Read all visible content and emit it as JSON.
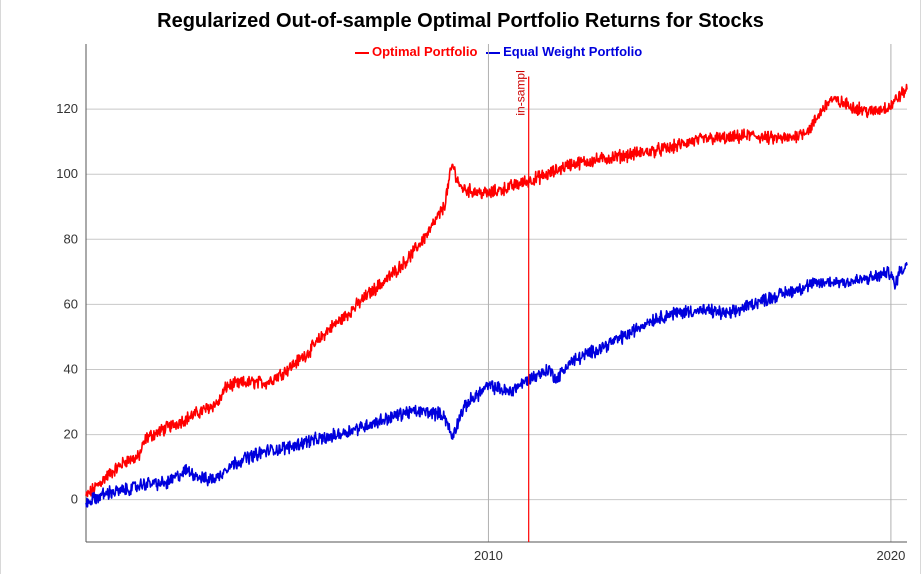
{
  "chart_data": {
    "type": "line",
    "title": "Regularized Out-of-sample Optimal Portfolio Returns for Stocks",
    "xlabel": "",
    "ylabel": "",
    "xlim": [
      2000.0,
      2020.4
    ],
    "ylim": [
      -13,
      140
    ],
    "y_ticks": [
      0,
      20,
      40,
      60,
      80,
      100,
      120
    ],
    "x_ticks": [
      2010,
      2020
    ],
    "grid": true,
    "legend_position": "top-center",
    "annotation": {
      "text": "in-sampl",
      "x": 2011.0,
      "color": "#ff0000"
    },
    "series": [
      {
        "name": "Optimal Portfolio",
        "color": "#ff0000",
        "x": [
          2000.0,
          2000.5,
          2001.0,
          2001.3,
          2001.5,
          2002.0,
          2002.5,
          2003.0,
          2003.3,
          2003.5,
          2004.0,
          2004.5,
          2005.0,
          2005.5,
          2006.0,
          2006.5,
          2007.0,
          2007.5,
          2008.0,
          2008.5,
          2008.9,
          2009.1,
          2009.3,
          2009.5,
          2010.0,
          2010.5,
          2011.0,
          2011.5,
          2012.0,
          2012.5,
          2013.0,
          2013.5,
          2014.0,
          2014.5,
          2015.0,
          2015.5,
          2016.0,
          2016.5,
          2017.0,
          2017.5,
          2018.0,
          2018.3,
          2018.5,
          2019.0,
          2019.5,
          2020.0,
          2020.2,
          2020.4
        ],
        "y": [
          1,
          7,
          12,
          13,
          19,
          22,
          25,
          28,
          30,
          35,
          36,
          36,
          40,
          45,
          52,
          57,
          63,
          68,
          74,
          82,
          90,
          103,
          96,
          95,
          94,
          96,
          98,
          100,
          103,
          104,
          105,
          106,
          107,
          108,
          110,
          111,
          111,
          112,
          111,
          111,
          114,
          120,
          123,
          121,
          119,
          121,
          124,
          126
        ]
      },
      {
        "name": "Equal Weight Portfolio",
        "color": "#0000dd",
        "x": [
          2000.0,
          2000.5,
          2001.0,
          2001.5,
          2002.0,
          2002.5,
          2003.0,
          2003.3,
          2003.5,
          2004.0,
          2004.5,
          2005.0,
          2005.5,
          2006.0,
          2006.5,
          2007.0,
          2007.5,
          2008.0,
          2008.5,
          2008.9,
          2009.1,
          2009.3,
          2009.5,
          2010.0,
          2010.3,
          2010.5,
          2011.0,
          2011.5,
          2011.7,
          2012.0,
          2012.5,
          2013.0,
          2013.5,
          2014.0,
          2014.5,
          2015.0,
          2015.5,
          2016.0,
          2016.5,
          2017.0,
          2017.5,
          2018.0,
          2018.5,
          2019.0,
          2019.5,
          2020.0,
          2020.1,
          2020.2,
          2020.4
        ],
        "y": [
          -1,
          2,
          3,
          5,
          5,
          9,
          6,
          7,
          10,
          13,
          15,
          16,
          18,
          19,
          21,
          23,
          25,
          27,
          27,
          26,
          19,
          26,
          30,
          35,
          34,
          33,
          37,
          40,
          37,
          42,
          45,
          48,
          51,
          55,
          57,
          58,
          58,
          57,
          60,
          62,
          64,
          66,
          67,
          67,
          68,
          70,
          65,
          70,
          72
        ]
      }
    ]
  },
  "legend": {
    "items": [
      {
        "label": "Optimal Portfolio",
        "color": "#ff0000"
      },
      {
        "label": "Equal Weight Portfolio",
        "color": "#0000dd"
      }
    ]
  },
  "y_tick_labels": [
    "0",
    "20",
    "40",
    "60",
    "80",
    "100",
    "120"
  ],
  "x_tick_labels": [
    "2010",
    "2020"
  ]
}
